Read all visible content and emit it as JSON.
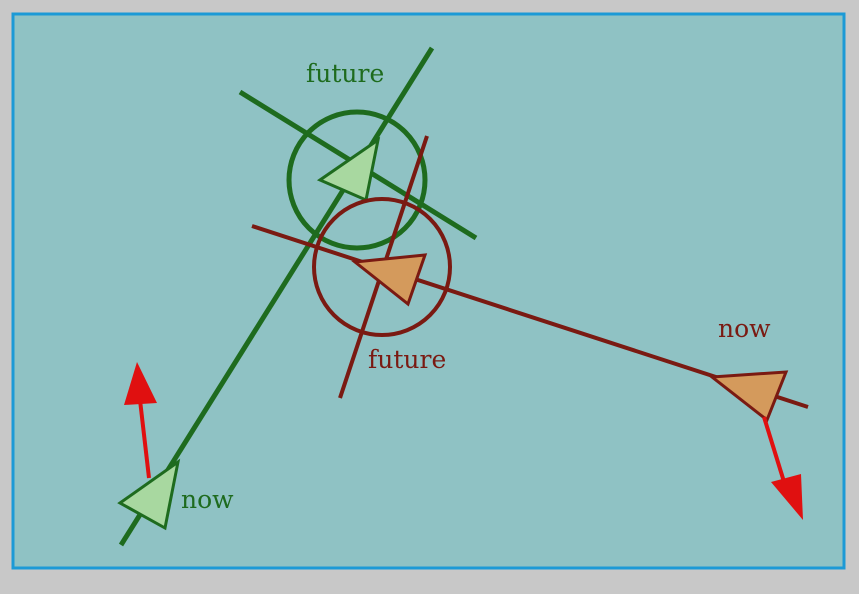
{
  "colors": {
    "frame_outer": "#c8c8c8",
    "frame_border": "#1c9ad6",
    "background": "#8fc2c4",
    "green_line": "#1e6b1e",
    "green_fill": "#a8d8a0",
    "brown_line": "#7a1a12",
    "brown_fill": "#d49a5c",
    "arrow_red": "#e01010"
  },
  "labels": {
    "green_future": "future",
    "green_now": "now",
    "brown_future": "future",
    "brown_now": "now"
  }
}
